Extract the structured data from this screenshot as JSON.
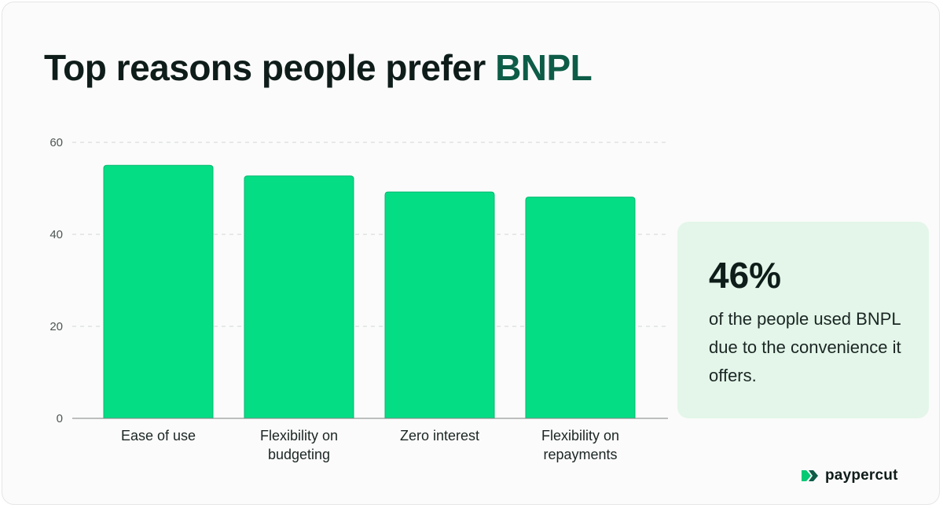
{
  "header": {
    "title_prefix": "Top reasons people prefer ",
    "title_accent": "BNPL"
  },
  "chart_data": {
    "type": "bar",
    "categories": [
      "Ease of use",
      "Flexibility on budgeting",
      "Zero interest",
      "Flexibility on repayments"
    ],
    "category_lines": [
      [
        "Ease of use"
      ],
      [
        "Flexibility on",
        "budgeting"
      ],
      [
        "Zero interest"
      ],
      [
        "Flexibility on",
        "repayments"
      ]
    ],
    "values": [
      55,
      52.7,
      49.2,
      48.1
    ],
    "yticks": [
      0,
      20,
      40,
      60
    ],
    "ylim": [
      0,
      60
    ],
    "xlabel": "",
    "ylabel": "",
    "grid": "horizontal-dashed",
    "bar_color": "#05dd85"
  },
  "stat": {
    "value": "46%",
    "description": "of the people used BNPL due to the convenience it offers."
  },
  "brand": {
    "name": "paypercut",
    "logo_icon": "paypercut-logo-icon",
    "logo_color": "#05c975"
  }
}
